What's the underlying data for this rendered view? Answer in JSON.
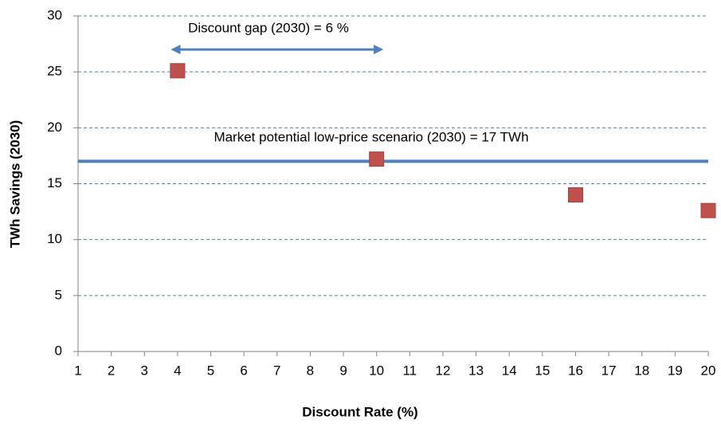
{
  "chart_data": {
    "type": "scatter",
    "xlabel": "Discount Rate (%)",
    "ylabel": "TWh Savings (2030)",
    "series": [
      {
        "color": "#c0504d",
        "x": [
          4,
          10,
          16,
          20
        ],
        "values": [
          25.1,
          17.2,
          14.0,
          12.6
        ]
      }
    ],
    "xlim": [
      1,
      20
    ],
    "xticks": [
      1,
      2,
      3,
      4,
      5,
      6,
      7,
      8,
      9,
      10,
      11,
      12,
      13,
      14,
      15,
      16,
      17,
      18,
      19,
      20
    ],
    "ylim": [
      0,
      30
    ],
    "yticks": [
      0,
      5,
      10,
      15,
      20,
      25,
      30
    ],
    "grid": true,
    "reference_line": {
      "y": 17,
      "color": "#4f81bd",
      "label": "Market potential low-price scenario (2030) = 17 TWh"
    },
    "gap_arrow": {
      "x": [
        4,
        10
      ],
      "y": 27,
      "color": "#4f81bd",
      "label": "Discount gap (2030) = 6 %"
    }
  }
}
